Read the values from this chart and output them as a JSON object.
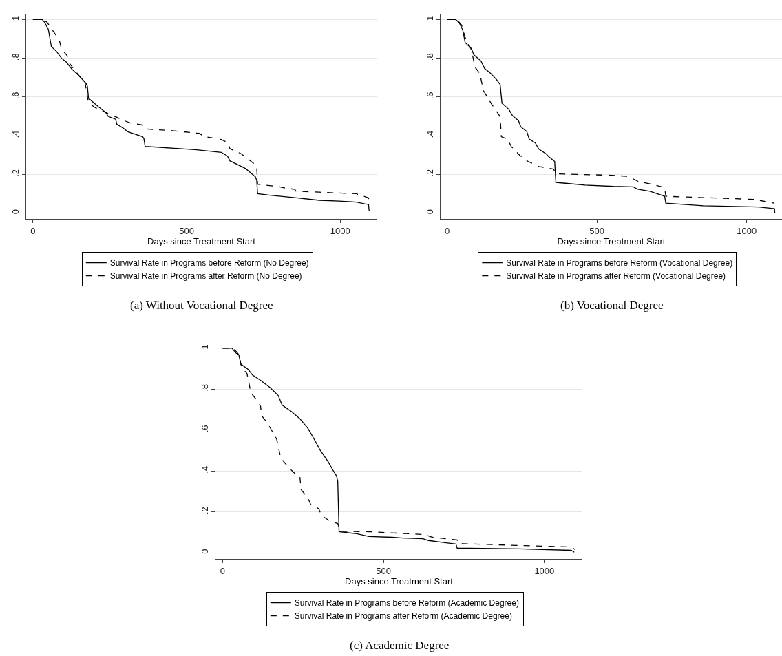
{
  "chart_data": [
    {
      "type": "line",
      "title": "(a) Without Vocational Degree",
      "xlabel": "Days since Treatment Start",
      "xlim": [
        -22,
        1118
      ],
      "xticks": [
        0,
        500,
        1000
      ],
      "ylim": [
        -0.03,
        1.03
      ],
      "yticks": [
        0,
        {
          "value": 0.2,
          "label": ".2"
        },
        {
          "value": 0.4,
          "label": ".4"
        },
        {
          "value": 0.6,
          "label": ".6"
        },
        {
          "value": 0.8,
          "label": ".8"
        },
        1
      ],
      "grid": "y",
      "legend": "bottom",
      "series": [
        {
          "name": "Survival Rate in Programs before Reform (No Degree)",
          "color": "#000000",
          "line_style": "solid",
          "x": [
            0,
            30,
            37.5,
            50,
            60,
            77,
            93,
            109,
            126,
            150,
            173,
            177,
            181,
            213,
            237,
            245,
            269,
            273,
            293,
            309,
            357,
            361,
            365,
            413,
            533,
            613,
            633,
            641,
            692,
            724,
            728,
            731,
            772,
            852,
            932,
            996,
            1052,
            1092,
            1094
          ],
          "values": [
            1,
            1,
            0.987,
            0.95,
            0.86,
            0.835,
            0.8,
            0.78,
            0.745,
            0.71,
            0.67,
            0.657,
            0.593,
            0.55,
            0.52,
            0.5,
            0.485,
            0.46,
            0.44,
            0.42,
            0.395,
            0.385,
            0.345,
            0.34,
            0.327,
            0.314,
            0.295,
            0.27,
            0.23,
            0.187,
            0.17,
            0.1,
            0.092,
            0.08,
            0.066,
            0.062,
            0.057,
            0.044,
            0.01
          ]
        },
        {
          "name": "Survival Rate in Programs after Reform (No Degree)",
          "color": "#000000",
          "line_style": "dashed",
          "x": [
            0,
            33.5,
            45.5,
            73,
            86,
            93,
            110,
            121,
            150,
            170,
            181,
            205,
            237,
            269,
            293,
            317,
            361,
            365,
            453,
            541,
            557,
            613,
            633,
            641,
            677,
            724,
            728,
            731,
            796,
            820,
            852,
            856,
            932,
            1052,
            1092,
            1094
          ],
          "values": [
            1,
            1,
            0.987,
            0.924,
            0.892,
            0.848,
            0.816,
            0.77,
            0.71,
            0.67,
            0.568,
            0.543,
            0.52,
            0.498,
            0.48,
            0.466,
            0.454,
            0.435,
            0.426,
            0.412,
            0.396,
            0.38,
            0.365,
            0.333,
            0.307,
            0.25,
            0.238,
            0.149,
            0.138,
            0.13,
            0.123,
            0.113,
            0.108,
            0.1,
            0.079,
            0.047
          ]
        }
      ]
    },
    {
      "type": "line",
      "title": "(b) Vocational Degree",
      "xlabel": "Days since Treatment Start",
      "xlim": [
        -22,
        1118
      ],
      "xticks": [
        0,
        500,
        1000
      ],
      "ylim": [
        -0.03,
        1.03
      ],
      "yticks": [
        0,
        {
          "value": 0.2,
          "label": ".2"
        },
        {
          "value": 0.4,
          "label": ".4"
        },
        {
          "value": 0.6,
          "label": ".6"
        },
        {
          "value": 0.8,
          "label": ".8"
        },
        1
      ],
      "grid": "y",
      "legend": "bottom",
      "series": [
        {
          "name": "Survival Rate in Programs before Reform (Vocational Degree)",
          "color": "#000000",
          "line_style": "solid",
          "x": [
            0,
            28,
            40,
            52,
            60,
            81,
            89,
            113,
            125,
            145,
            165,
            177,
            183,
            206,
            218,
            238,
            246,
            266,
            274,
            294,
            306,
            331,
            339,
            359,
            363,
            395,
            460,
            556,
            621,
            637,
            677,
            726,
            730,
            855,
            1040,
            1093,
            1094
          ],
          "values": [
            1,
            1,
            0.985,
            0.946,
            0.882,
            0.85,
            0.818,
            0.786,
            0.747,
            0.722,
            0.69,
            0.664,
            0.568,
            0.536,
            0.504,
            0.478,
            0.446,
            0.421,
            0.382,
            0.363,
            0.331,
            0.305,
            0.292,
            0.267,
            0.158,
            0.154,
            0.145,
            0.138,
            0.136,
            0.123,
            0.113,
            0.087,
            0.051,
            0.038,
            0.032,
            0.023,
            0
          ]
        },
        {
          "name": "Survival Rate in Programs after Reform (Vocational Degree)",
          "color": "#000000",
          "line_style": "dashed",
          "x": [
            0,
            32,
            48,
            60,
            81,
            93,
            109,
            121,
            149,
            169,
            177,
            181,
            202,
            214,
            242,
            270,
            306,
            355,
            363,
            435,
            540,
            605,
            637,
            677,
            726,
            730,
            839,
            1024,
            1093
          ],
          "values": [
            1,
            1,
            0.972,
            0.908,
            0.844,
            0.754,
            0.722,
            0.633,
            0.562,
            0.517,
            0.497,
            0.395,
            0.382,
            0.344,
            0.299,
            0.267,
            0.241,
            0.228,
            0.203,
            0.2,
            0.196,
            0.19,
            0.164,
            0.151,
            0.132,
            0.087,
            0.081,
            0.071,
            0.051
          ]
        }
      ]
    },
    {
      "type": "line",
      "title": "(c) Academic Degree",
      "xlabel": "Days since Treatment Start",
      "xlim": [
        -22,
        1118
      ],
      "xticks": [
        0,
        500,
        1000
      ],
      "ylim": [
        -0.03,
        1.03
      ],
      "yticks": [
        0,
        {
          "value": 0.2,
          "label": ".2"
        },
        {
          "value": 0.4,
          "label": ".4"
        },
        {
          "value": 0.6,
          "label": ".6"
        },
        {
          "value": 0.8,
          "label": ".8"
        },
        1
      ],
      "grid": "y",
      "legend": "bottom",
      "series": [
        {
          "name": "Survival Rate in Programs before Reform (Academic Degree)",
          "color": "#000000",
          "line_style": "solid",
          "x": [
            0,
            29.5,
            42,
            50.5,
            56.5,
            80,
            93,
            118,
            147,
            173,
            185,
            215,
            240,
            265,
            282,
            303,
            329,
            341,
            354,
            358,
            362,
            417,
            455,
            527,
            560,
            623,
            640,
            695,
            725,
            729,
            922,
            1083,
            1093
          ],
          "values": [
            1,
            1,
            0.976,
            0.969,
            0.923,
            0.896,
            0.869,
            0.843,
            0.809,
            0.769,
            0.723,
            0.689,
            0.656,
            0.609,
            0.563,
            0.503,
            0.443,
            0.409,
            0.376,
            0.349,
            0.103,
            0.093,
            0.08,
            0.076,
            0.072,
            0.069,
            0.06,
            0.049,
            0.043,
            0.023,
            0.019,
            0.012,
            0.003
          ]
        },
        {
          "name": "Survival Rate in Programs after Reform (Academic Degree)",
          "color": "#000000",
          "line_style": "dashed",
          "x": [
            0,
            34,
            50.5,
            59,
            76,
            88,
            105,
            118,
            122,
            139,
            156,
            168,
            181,
            206,
            228,
            240,
            244,
            265,
            274,
            299,
            307,
            333,
            358,
            365,
            459,
            543,
            628,
            653,
            729,
            733,
            922,
            1083,
            1095
          ],
          "values": [
            1,
            1,
            0.969,
            0.909,
            0.876,
            0.783,
            0.749,
            0.716,
            0.669,
            0.636,
            0.589,
            0.556,
            0.463,
            0.416,
            0.383,
            0.376,
            0.309,
            0.269,
            0.236,
            0.216,
            0.183,
            0.156,
            0.143,
            0.105,
            0.103,
            0.096,
            0.089,
            0.076,
            0.063,
            0.045,
            0.036,
            0.029,
            0.016
          ]
        }
      ]
    }
  ]
}
